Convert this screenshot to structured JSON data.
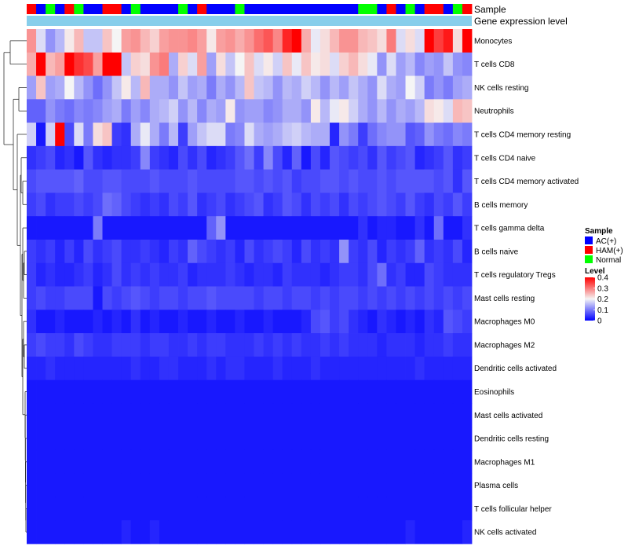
{
  "chart_data": {
    "type": "heatmap",
    "title": "",
    "annotation_tracks": [
      {
        "label": "Sample"
      },
      {
        "label": "Gene expression level"
      }
    ],
    "rows": [
      "Monocytes",
      "T cells CD8",
      "NK cells resting",
      "Neutrophils",
      "T cells CD4 memory resting",
      "T cells CD4 naive",
      "T cells CD4 memory activated",
      "B cells memory",
      "T cells gamma delta",
      "B cells naive",
      "T cells regulatory  Tregs",
      "Mast cells resting",
      "Macrophages M0",
      "Macrophages M2",
      "Dendritic cells activated",
      "Eosinophils",
      "Mast cells activated",
      "Dendritic cells resting",
      "Macrophages M1",
      "Plasma cells",
      "T cells follicular helper",
      "NK cells activated"
    ],
    "sample_groups": [
      "HAM(+)",
      "AC(+)",
      "Normal",
      "AC(+)",
      "HAM(+)",
      "Normal",
      "AC(+)",
      "AC(+)",
      "HAM(+)",
      "HAM(+)",
      "AC(+)",
      "Normal",
      "AC(+)",
      "AC(+)",
      "AC(+)",
      "AC(+)",
      "Normal",
      "AC(+)",
      "HAM(+)",
      "AC(+)",
      "AC(+)",
      "AC(+)",
      "Normal",
      "AC(+)",
      "AC(+)",
      "AC(+)",
      "AC(+)",
      "AC(+)",
      "AC(+)",
      "AC(+)",
      "AC(+)",
      "AC(+)",
      "AC(+)",
      "AC(+)",
      "AC(+)",
      "Normal",
      "Normal",
      "AC(+)",
      "HAM(+)",
      "AC(+)",
      "Normal",
      "AC(+)",
      "HAM(+)",
      "HAM(+)",
      "AC(+)",
      "Normal",
      "HAM(+)"
    ],
    "values": [
      [
        0.28,
        0.18,
        0.12,
        0.15,
        0.21,
        0.25,
        0.16,
        0.16,
        0.24,
        0.2,
        0.27,
        0.28,
        0.25,
        0.23,
        0.27,
        0.28,
        0.28,
        0.29,
        0.27,
        0.21,
        0.27,
        0.28,
        0.26,
        0.28,
        0.31,
        0.33,
        0.29,
        0.37,
        0.4,
        0.26,
        0.19,
        0.22,
        0.25,
        0.28,
        0.28,
        0.25,
        0.24,
        0.22,
        0.3,
        0.18,
        0.22,
        0.18,
        0.4,
        0.35,
        0.38,
        0.22,
        0.4
      ],
      [
        0.26,
        0.4,
        0.25,
        0.27,
        0.4,
        0.36,
        0.34,
        0.27,
        0.4,
        0.4,
        0.16,
        0.23,
        0.22,
        0.28,
        0.3,
        0.14,
        0.23,
        0.18,
        0.27,
        0.13,
        0.22,
        0.16,
        0.2,
        0.24,
        0.18,
        0.21,
        0.17,
        0.24,
        0.19,
        0.24,
        0.21,
        0.22,
        0.18,
        0.23,
        0.25,
        0.22,
        0.19,
        0.12,
        0.18,
        0.13,
        0.15,
        0.11,
        0.13,
        0.12,
        0.16,
        0.12,
        0.11
      ],
      [
        0.13,
        0.24,
        0.13,
        0.14,
        0.2,
        0.15,
        0.12,
        0.09,
        0.12,
        0.16,
        0.21,
        0.15,
        0.25,
        0.14,
        0.14,
        0.12,
        0.16,
        0.13,
        0.14,
        0.1,
        0.14,
        0.12,
        0.15,
        0.24,
        0.16,
        0.15,
        0.12,
        0.15,
        0.14,
        0.17,
        0.15,
        0.12,
        0.15,
        0.13,
        0.16,
        0.14,
        0.12,
        0.18,
        0.14,
        0.13,
        0.2,
        0.17,
        0.1,
        0.12,
        0.1,
        0.13,
        0.14
      ],
      [
        0.08,
        0.08,
        0.12,
        0.1,
        0.09,
        0.11,
        0.1,
        0.11,
        0.13,
        0.14,
        0.1,
        0.13,
        0.11,
        0.14,
        0.15,
        0.17,
        0.12,
        0.15,
        0.11,
        0.14,
        0.13,
        0.21,
        0.12,
        0.13,
        0.13,
        0.11,
        0.12,
        0.14,
        0.14,
        0.12,
        0.21,
        0.15,
        0.19,
        0.21,
        0.17,
        0.14,
        0.12,
        0.15,
        0.12,
        0.14,
        0.13,
        0.15,
        0.22,
        0.21,
        0.18,
        0.25,
        0.24
      ],
      [
        0.17,
        0.02,
        0.17,
        0.4,
        0.06,
        0.18,
        0.1,
        0.22,
        0.24,
        0.05,
        0.04,
        0.14,
        0.19,
        0.14,
        0.1,
        0.15,
        0.05,
        0.13,
        0.16,
        0.18,
        0.18,
        0.1,
        0.11,
        0.18,
        0.14,
        0.13,
        0.14,
        0.16,
        0.17,
        0.15,
        0.14,
        0.14,
        0.03,
        0.12,
        0.1,
        0.05,
        0.09,
        0.11,
        0.12,
        0.12,
        0.07,
        0.08,
        0.12,
        0.1,
        0.09,
        0.11,
        0.1
      ],
      [
        0.04,
        0.05,
        0.06,
        0.03,
        0.04,
        0.02,
        0.07,
        0.04,
        0.03,
        0.04,
        0.04,
        0.05,
        0.11,
        0.05,
        0.04,
        0.03,
        0.06,
        0.04,
        0.06,
        0.03,
        0.04,
        0.05,
        0.07,
        0.09,
        0.05,
        0.11,
        0.06,
        0.03,
        0.08,
        0.02,
        0.06,
        0.03,
        0.07,
        0.06,
        0.05,
        0.06,
        0.04,
        0.07,
        0.05,
        0.06,
        0.07,
        0.03,
        0.04,
        0.05,
        0.07,
        0.04,
        0.05
      ],
      [
        0.06,
        0.07,
        0.07,
        0.07,
        0.07,
        0.08,
        0.06,
        0.06,
        0.07,
        0.07,
        0.06,
        0.06,
        0.06,
        0.07,
        0.06,
        0.06,
        0.06,
        0.07,
        0.06,
        0.06,
        0.06,
        0.06,
        0.07,
        0.07,
        0.06,
        0.07,
        0.06,
        0.07,
        0.05,
        0.06,
        0.06,
        0.07,
        0.07,
        0.06,
        0.07,
        0.06,
        0.06,
        0.07,
        0.06,
        0.07,
        0.07,
        0.07,
        0.07,
        0.06,
        0.07,
        0.04,
        0.07
      ],
      [
        0.05,
        0.06,
        0.04,
        0.05,
        0.05,
        0.06,
        0.05,
        0.06,
        0.09,
        0.08,
        0.06,
        0.05,
        0.04,
        0.05,
        0.04,
        0.06,
        0.05,
        0.07,
        0.04,
        0.05,
        0.06,
        0.04,
        0.05,
        0.06,
        0.07,
        0.04,
        0.05,
        0.07,
        0.06,
        0.04,
        0.06,
        0.05,
        0.06,
        0.04,
        0.06,
        0.05,
        0.06,
        0.07,
        0.06,
        0.05,
        0.07,
        0.05,
        0.04,
        0.06,
        0.05,
        0.07,
        0.05
      ],
      [
        0.02,
        0.02,
        0.02,
        0.02,
        0.02,
        0.02,
        0.02,
        0.1,
        0.02,
        0.02,
        0.02,
        0.02,
        0.02,
        0.02,
        0.02,
        0.02,
        0.02,
        0.02,
        0.02,
        0.08,
        0.12,
        0.02,
        0.02,
        0.02,
        0.02,
        0.02,
        0.02,
        0.02,
        0.02,
        0.02,
        0.02,
        0.02,
        0.02,
        0.02,
        0.02,
        0.04,
        0.02,
        0.03,
        0.03,
        0.02,
        0.02,
        0.04,
        0.02,
        0.09,
        0.02,
        0.02,
        0.04
      ],
      [
        0.05,
        0.04,
        0.05,
        0.03,
        0.05,
        0.03,
        0.06,
        0.04,
        0.05,
        0.06,
        0.04,
        0.04,
        0.05,
        0.04,
        0.03,
        0.05,
        0.04,
        0.08,
        0.06,
        0.05,
        0.04,
        0.05,
        0.03,
        0.06,
        0.04,
        0.05,
        0.06,
        0.05,
        0.03,
        0.06,
        0.04,
        0.05,
        0.04,
        0.12,
        0.05,
        0.04,
        0.06,
        0.03,
        0.05,
        0.04,
        0.05,
        0.08,
        0.04,
        0.05,
        0.04,
        0.06,
        0.03
      ],
      [
        0.05,
        0.03,
        0.04,
        0.03,
        0.03,
        0.04,
        0.05,
        0.03,
        0.04,
        0.06,
        0.04,
        0.05,
        0.04,
        0.05,
        0.04,
        0.04,
        0.05,
        0.03,
        0.04,
        0.04,
        0.04,
        0.05,
        0.04,
        0.03,
        0.04,
        0.04,
        0.03,
        0.05,
        0.04,
        0.04,
        0.04,
        0.03,
        0.04,
        0.05,
        0.05,
        0.04,
        0.06,
        0.09,
        0.04,
        0.05,
        0.03,
        0.03,
        0.06,
        0.05,
        0.04,
        0.04,
        0.04
      ],
      [
        0.05,
        0.06,
        0.05,
        0.05,
        0.06,
        0.06,
        0.06,
        0.02,
        0.06,
        0.05,
        0.06,
        0.07,
        0.06,
        0.05,
        0.06,
        0.06,
        0.05,
        0.06,
        0.06,
        0.07,
        0.06,
        0.06,
        0.06,
        0.06,
        0.05,
        0.06,
        0.06,
        0.05,
        0.06,
        0.06,
        0.05,
        0.06,
        0.05,
        0.06,
        0.06,
        0.05,
        0.06,
        0.05,
        0.06,
        0.05,
        0.06,
        0.05,
        0.06,
        0.05,
        0.06,
        0.05,
        0.06
      ],
      [
        0.04,
        0.02,
        0.02,
        0.03,
        0.02,
        0.02,
        0.02,
        0.03,
        0.02,
        0.03,
        0.02,
        0.04,
        0.02,
        0.03,
        0.02,
        0.02,
        0.03,
        0.02,
        0.02,
        0.03,
        0.02,
        0.02,
        0.03,
        0.02,
        0.02,
        0.03,
        0.02,
        0.02,
        0.02,
        0.03,
        0.06,
        0.07,
        0.05,
        0.06,
        0.04,
        0.03,
        0.02,
        0.04,
        0.03,
        0.02,
        0.03,
        0.02,
        0.04,
        0.03,
        0.07,
        0.06,
        0.05
      ],
      [
        0.05,
        0.06,
        0.05,
        0.05,
        0.04,
        0.06,
        0.05,
        0.04,
        0.04,
        0.05,
        0.05,
        0.05,
        0.04,
        0.05,
        0.05,
        0.04,
        0.04,
        0.05,
        0.04,
        0.05,
        0.05,
        0.04,
        0.04,
        0.04,
        0.05,
        0.04,
        0.05,
        0.04,
        0.05,
        0.04,
        0.04,
        0.05,
        0.04,
        0.05,
        0.04,
        0.04,
        0.04,
        0.03,
        0.04,
        0.04,
        0.04,
        0.03,
        0.04,
        0.04,
        0.05,
        0.04,
        0.04
      ],
      [
        0.03,
        0.03,
        0.04,
        0.03,
        0.03,
        0.03,
        0.03,
        0.03,
        0.03,
        0.03,
        0.03,
        0.04,
        0.03,
        0.03,
        0.04,
        0.04,
        0.03,
        0.03,
        0.03,
        0.04,
        0.03,
        0.04,
        0.04,
        0.03,
        0.03,
        0.03,
        0.04,
        0.03,
        0.03,
        0.03,
        0.04,
        0.03,
        0.03,
        0.03,
        0.03,
        0.03,
        0.03,
        0.03,
        0.03,
        0.03,
        0.03,
        0.04,
        0.03,
        0.03,
        0.03,
        0.03,
        0.03
      ],
      [
        0.02,
        0.02,
        0.02,
        0.02,
        0.02,
        0.02,
        0.02,
        0.02,
        0.02,
        0.02,
        0.02,
        0.02,
        0.02,
        0.02,
        0.02,
        0.02,
        0.02,
        0.02,
        0.02,
        0.02,
        0.02,
        0.02,
        0.02,
        0.02,
        0.02,
        0.02,
        0.02,
        0.02,
        0.02,
        0.02,
        0.02,
        0.02,
        0.02,
        0.02,
        0.02,
        0.02,
        0.02,
        0.02,
        0.02,
        0.02,
        0.02,
        0.02,
        0.02,
        0.02,
        0.02,
        0.02,
        0.02
      ],
      [
        0.02,
        0.02,
        0.02,
        0.02,
        0.02,
        0.02,
        0.02,
        0.02,
        0.02,
        0.02,
        0.02,
        0.02,
        0.02,
        0.02,
        0.02,
        0.02,
        0.02,
        0.02,
        0.02,
        0.02,
        0.02,
        0.02,
        0.02,
        0.02,
        0.02,
        0.02,
        0.02,
        0.02,
        0.02,
        0.02,
        0.02,
        0.02,
        0.02,
        0.02,
        0.02,
        0.02,
        0.02,
        0.02,
        0.02,
        0.02,
        0.02,
        0.02,
        0.02,
        0.02,
        0.02,
        0.02,
        0.02
      ],
      [
        0.02,
        0.02,
        0.02,
        0.02,
        0.02,
        0.02,
        0.02,
        0.02,
        0.02,
        0.02,
        0.02,
        0.02,
        0.02,
        0.02,
        0.02,
        0.02,
        0.02,
        0.02,
        0.02,
        0.02,
        0.02,
        0.02,
        0.02,
        0.02,
        0.02,
        0.02,
        0.02,
        0.02,
        0.02,
        0.02,
        0.02,
        0.02,
        0.02,
        0.02,
        0.02,
        0.02,
        0.02,
        0.02,
        0.02,
        0.02,
        0.02,
        0.02,
        0.02,
        0.02,
        0.02,
        0.02,
        0.02
      ],
      [
        0.02,
        0.02,
        0.02,
        0.02,
        0.02,
        0.02,
        0.02,
        0.02,
        0.02,
        0.02,
        0.02,
        0.02,
        0.02,
        0.02,
        0.02,
        0.02,
        0.02,
        0.02,
        0.02,
        0.02,
        0.02,
        0.02,
        0.02,
        0.02,
        0.02,
        0.02,
        0.02,
        0.02,
        0.02,
        0.02,
        0.02,
        0.02,
        0.02,
        0.02,
        0.02,
        0.02,
        0.02,
        0.02,
        0.02,
        0.02,
        0.02,
        0.02,
        0.02,
        0.02,
        0.02,
        0.02,
        0.02
      ],
      [
        0.02,
        0.02,
        0.02,
        0.02,
        0.02,
        0.02,
        0.02,
        0.02,
        0.02,
        0.02,
        0.02,
        0.02,
        0.02,
        0.02,
        0.02,
        0.02,
        0.02,
        0.02,
        0.02,
        0.02,
        0.02,
        0.02,
        0.02,
        0.02,
        0.02,
        0.02,
        0.02,
        0.02,
        0.02,
        0.02,
        0.02,
        0.02,
        0.02,
        0.02,
        0.02,
        0.02,
        0.02,
        0.02,
        0.02,
        0.02,
        0.02,
        0.02,
        0.02,
        0.02,
        0.02,
        0.02,
        0.02
      ],
      [
        0.02,
        0.02,
        0.02,
        0.02,
        0.02,
        0.02,
        0.02,
        0.02,
        0.02,
        0.02,
        0.02,
        0.02,
        0.02,
        0.02,
        0.02,
        0.02,
        0.02,
        0.02,
        0.02,
        0.02,
        0.02,
        0.02,
        0.02,
        0.02,
        0.02,
        0.02,
        0.02,
        0.02,
        0.02,
        0.02,
        0.02,
        0.02,
        0.02,
        0.02,
        0.02,
        0.02,
        0.02,
        0.02,
        0.02,
        0.02,
        0.02,
        0.02,
        0.02,
        0.02,
        0.02,
        0.02,
        0.02
      ],
      [
        0.02,
        0.02,
        0.02,
        0.02,
        0.02,
        0.02,
        0.02,
        0.02,
        0.02,
        0.02,
        0.03,
        0.02,
        0.02,
        0.03,
        0.02,
        0.02,
        0.02,
        0.02,
        0.02,
        0.02,
        0.02,
        0.02,
        0.02,
        0.02,
        0.02,
        0.02,
        0.02,
        0.02,
        0.02,
        0.02,
        0.02,
        0.02,
        0.02,
        0.02,
        0.02,
        0.02,
        0.02,
        0.02,
        0.02,
        0.02,
        0.03,
        0.02,
        0.02,
        0.02,
        0.02,
        0.02,
        0.03
      ]
    ],
    "color_scale": {
      "min": 0,
      "mid": 0.2,
      "max": 0.4,
      "low": "#0000FF",
      "midcolor": "#F5F5F5",
      "high": "#FF0000"
    },
    "legend": {
      "sample_title": "Sample",
      "sample_entries": [
        {
          "label": "AC(+)",
          "color": "#0000FF"
        },
        {
          "label": "HAM(+)",
          "color": "#FF0000"
        },
        {
          "label": "Normal",
          "color": "#00FF00"
        }
      ],
      "level_title": "Level",
      "level_ticks": [
        "0.4",
        "0.3",
        "0.2",
        "0.1",
        "0"
      ],
      "level_tick_values": [
        0.4,
        0.3,
        0.2,
        0.1,
        0
      ]
    },
    "gene_expression_color": "#87CEEB"
  }
}
